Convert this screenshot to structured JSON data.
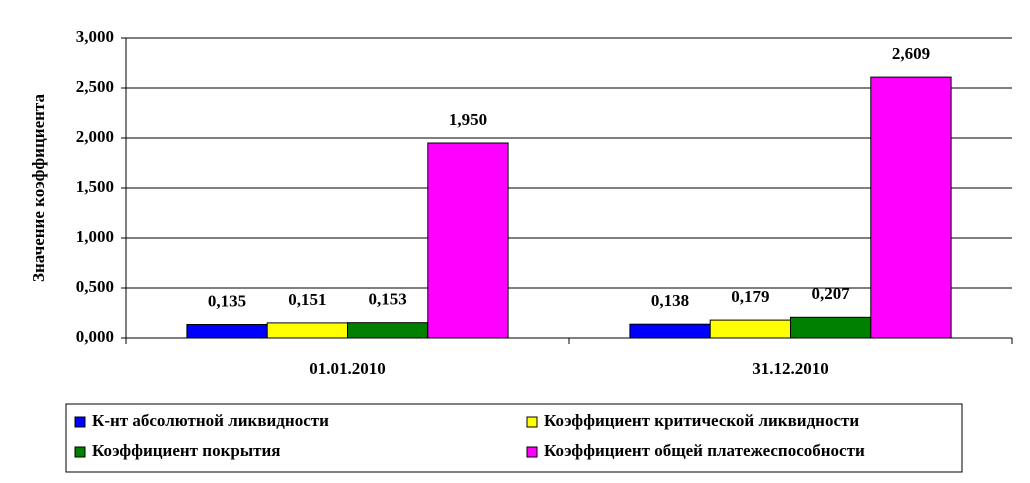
{
  "chart_data": {
    "type": "bar",
    "y_label": "Значение коэффициента",
    "categories": [
      "01.01.2010",
      "31.12.2010"
    ],
    "series": [
      {
        "name": "К-нт абсолютной ликвидности",
        "color": "#0000ff",
        "values": [
          0.135,
          0.138
        ],
        "value_labels": [
          "0,135",
          "0,138"
        ]
      },
      {
        "name": "Коэффициент критической ликвидности",
        "color": "#ffff00",
        "values": [
          0.151,
          0.179
        ],
        "value_labels": [
          "0,151",
          "0,179"
        ]
      },
      {
        "name": "Коэффициент покрытия",
        "color": "#008000",
        "values": [
          0.153,
          0.207
        ],
        "value_labels": [
          "0,153",
          "0,207"
        ]
      },
      {
        "name": "Коэффициент общей платежеспособности",
        "color": "#ff00ff",
        "values": [
          1.95,
          2.609
        ],
        "value_labels": [
          "1,950",
          "2,609"
        ]
      }
    ],
    "ylim": [
      0,
      3
    ],
    "yticks": [
      {
        "value": 0,
        "label": "0,000"
      },
      {
        "value": 0.5,
        "label": "0,500"
      },
      {
        "value": 1,
        "label": "1,000"
      },
      {
        "value": 1.5,
        "label": "1,500"
      },
      {
        "value": 2,
        "label": "2,000"
      },
      {
        "value": 2.5,
        "label": "2,500"
      },
      {
        "value": 3,
        "label": "3,000"
      }
    ],
    "grid": true
  }
}
